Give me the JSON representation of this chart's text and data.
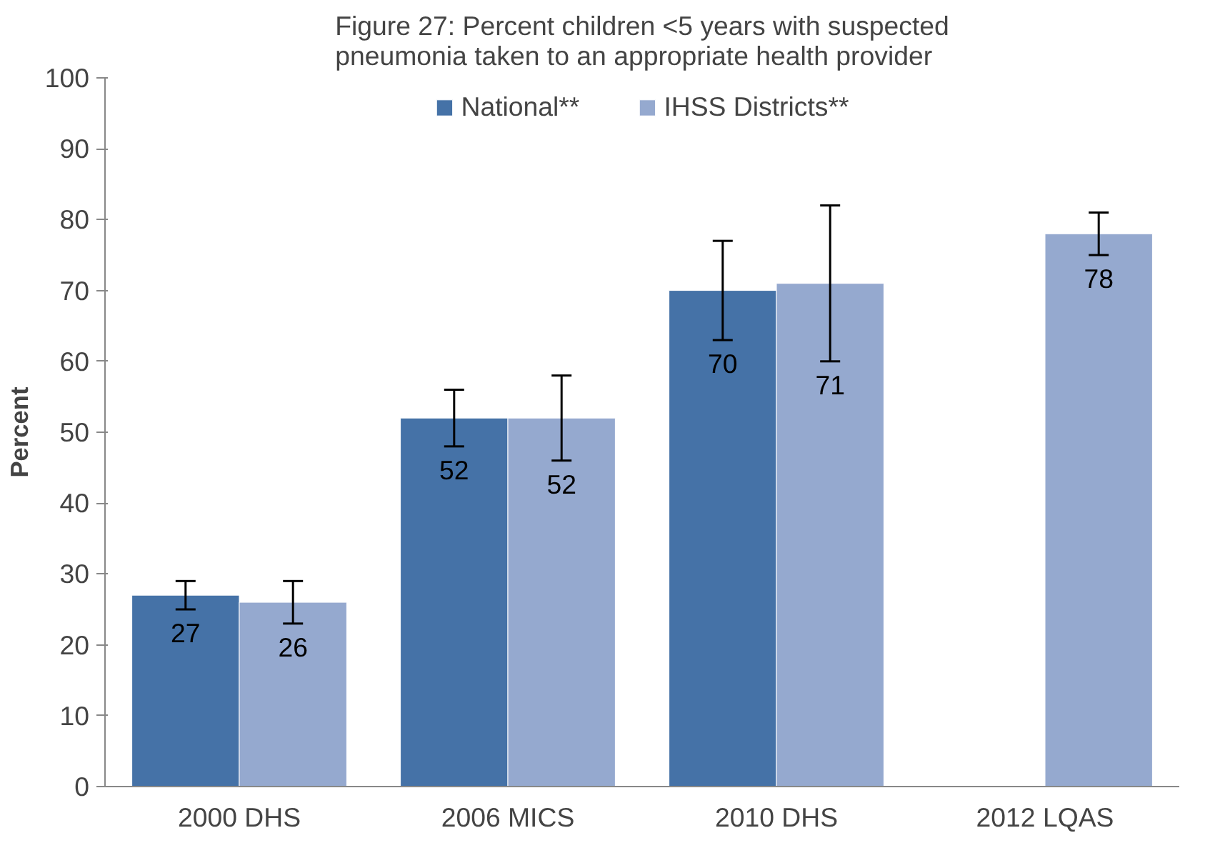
{
  "chart_data": {
    "type": "bar",
    "title": "Figure 27: Percent children <5 years with suspected pneumonia taken to an appropriate health provider",
    "ylabel": "Percent",
    "categories": [
      "2000 DHS",
      "2006 MICS",
      "2010 DHS",
      "2012 LQAS"
    ],
    "series": [
      {
        "name": "National**",
        "color": "#4572a7",
        "values": [
          27,
          52,
          70,
          null
        ],
        "errors": [
          [
            25,
            29
          ],
          [
            48,
            56
          ],
          [
            63,
            77
          ],
          null
        ]
      },
      {
        "name": "IHSS Districts**",
        "color": "#95a9cf",
        "values": [
          26,
          52,
          71,
          78
        ],
        "errors": [
          [
            23,
            29
          ],
          [
            46,
            58
          ],
          [
            60,
            82
          ],
          [
            75,
            81
          ]
        ]
      }
    ],
    "ylim": [
      0,
      100
    ],
    "yticks": [
      0,
      10,
      20,
      30,
      40,
      50,
      60,
      70,
      80,
      90,
      100
    ],
    "grid": false,
    "legend": "top",
    "data_labels": true
  }
}
